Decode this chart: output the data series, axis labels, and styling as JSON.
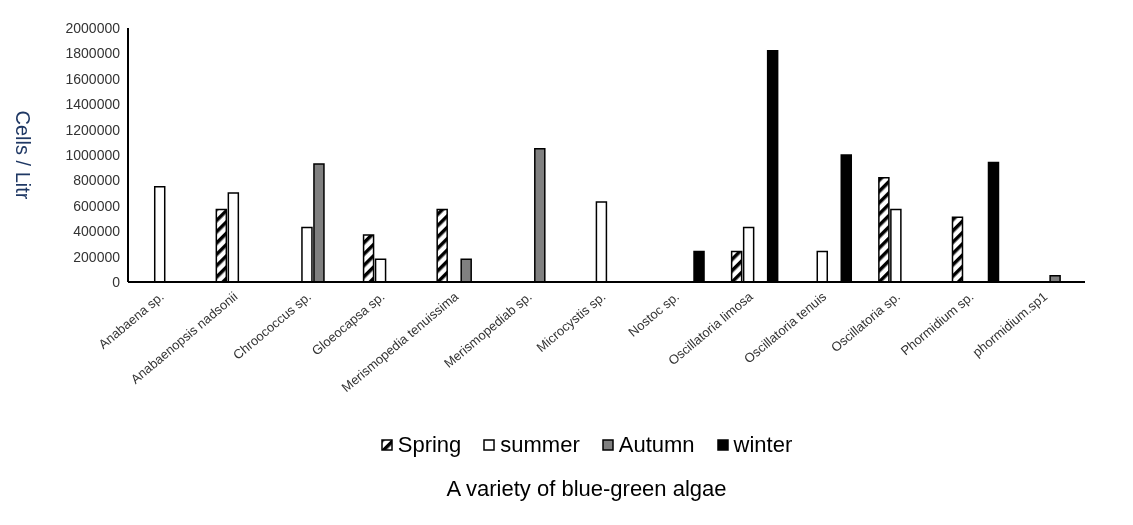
{
  "chart_data": {
    "type": "bar",
    "xlabel": "A variety of blue-green algae",
    "ylabel": "Cells / Litr",
    "categories": [
      "Anabaena sp.",
      "Anabaenopsis  nadsonii",
      "Chroococcus sp.",
      "Gloeocapsa sp.",
      "Merismopedia tenuissima",
      "Merismopediab sp.",
      "Microcystis sp.",
      "Nostoc sp.",
      "Oscillatoria limosa",
      "Oscillatoria tenuis",
      "Oscillatoria sp.",
      "Phormidium sp.",
      "phormidium.sp1"
    ],
    "series": [
      {
        "name": "Spring",
        "color": "#000000",
        "values": [
          null,
          570000,
          null,
          370000,
          570000,
          null,
          null,
          null,
          240000,
          null,
          820000,
          510000,
          null
        ]
      },
      {
        "name": "summer",
        "color": "#ffffff",
        "values": [
          750000,
          700000,
          430000,
          180000,
          null,
          null,
          630000,
          null,
          430000,
          240000,
          570000,
          null,
          null
        ]
      },
      {
        "name": "Autumn",
        "color": "#808080",
        "values": [
          null,
          null,
          930000,
          null,
          180000,
          1050000,
          null,
          null,
          null,
          null,
          null,
          null,
          50000
        ]
      },
      {
        "name": "winter",
        "color": "#000000",
        "values": [
          null,
          null,
          null,
          null,
          null,
          null,
          null,
          240000,
          1820000,
          1000000,
          null,
          940000,
          null
        ]
      }
    ],
    "ylim": [
      0,
      2000000
    ],
    "yticks": [
      0,
      200000,
      400000,
      600000,
      800000,
      1000000,
      1200000,
      1400000,
      1600000,
      1800000,
      2000000
    ],
    "legend": "bottom"
  }
}
